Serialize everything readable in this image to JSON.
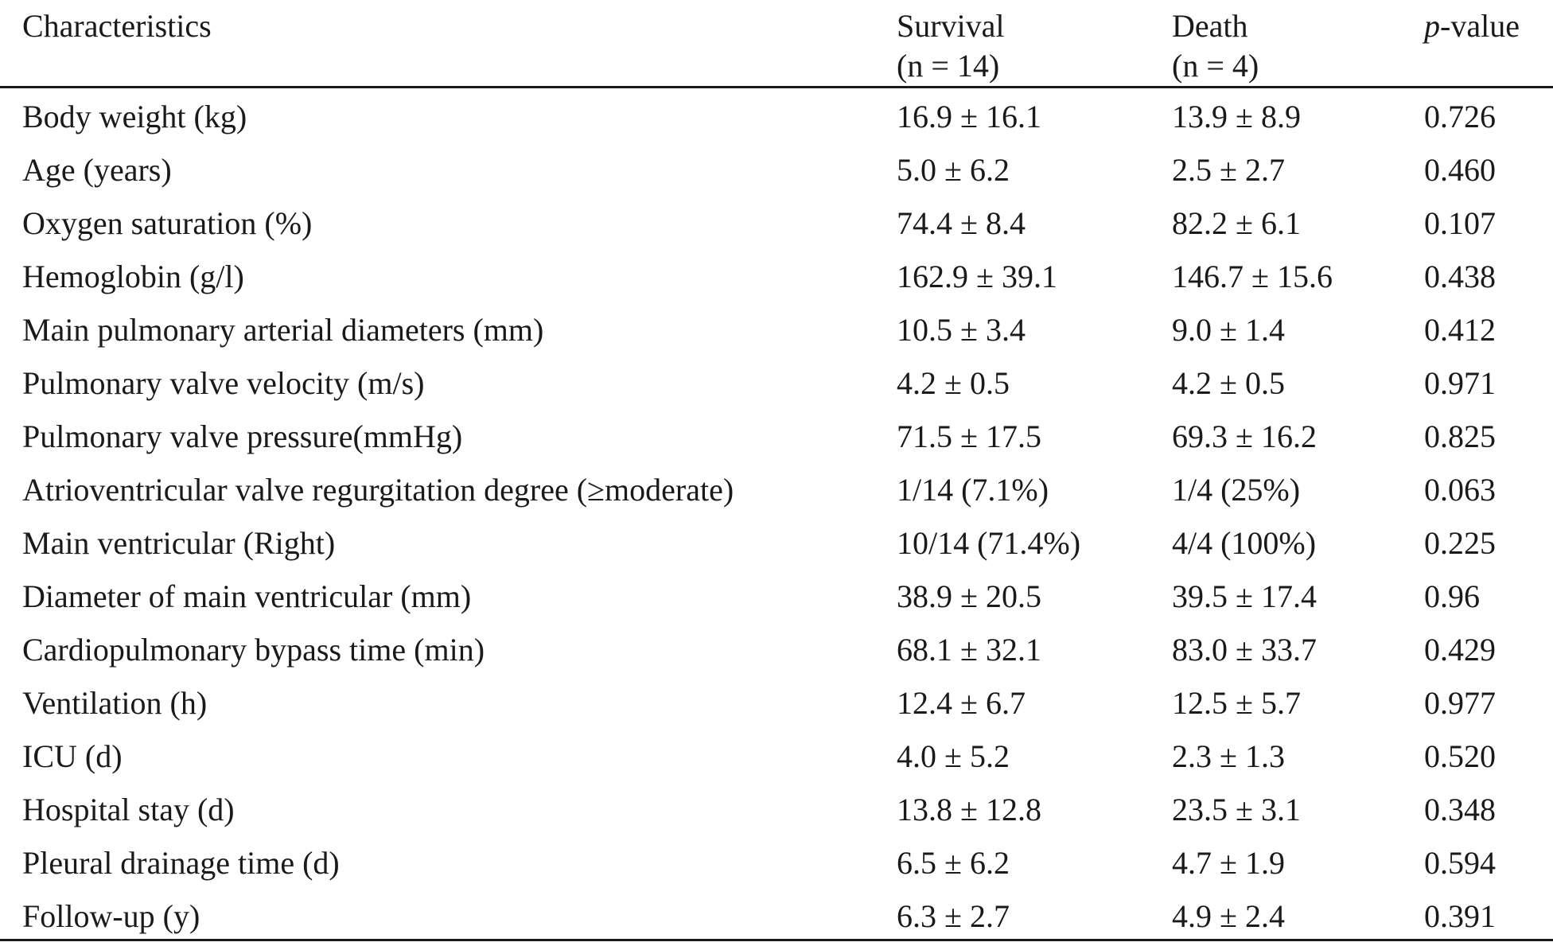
{
  "table": {
    "headers": {
      "characteristics": "Characteristics",
      "survival_line1": "Survival",
      "survival_line2": "(n = 14)",
      "death_line1": "Death",
      "death_line2": "(n = 4)",
      "pvalue_italic": "p",
      "pvalue_rest": "-value"
    },
    "rows": [
      {
        "label": "Body weight (kg)",
        "survival": "16.9 ± 16.1",
        "death": "13.9 ± 8.9",
        "p": "0.726"
      },
      {
        "label": "Age (years)",
        "survival": "5.0 ± 6.2",
        "death": "2.5 ± 2.7",
        "p": "0.460"
      },
      {
        "label": "Oxygen saturation (%)",
        "survival": "74.4 ± 8.4",
        "death": "82.2 ± 6.1",
        "p": "0.107"
      },
      {
        "label": "Hemoglobin (g/l)",
        "survival": "162.9 ± 39.1",
        "death": "146.7 ± 15.6",
        "p": "0.438"
      },
      {
        "label": "Main pulmonary arterial diameters (mm)",
        "survival": "10.5 ± 3.4",
        "death": "9.0 ± 1.4",
        "p": "0.412"
      },
      {
        "label": "Pulmonary valve velocity (m/s)",
        "survival": "4.2 ± 0.5",
        "death": "4.2 ± 0.5",
        "p": "0.971"
      },
      {
        "label": "Pulmonary valve pressure(mmHg)",
        "survival": "71.5 ± 17.5",
        "death": "69.3 ± 16.2",
        "p": "0.825"
      },
      {
        "label": "Atrioventricular valve regurgitation degree (≥moderate)",
        "survival": "1/14 (7.1%)",
        "death": "1/4 (25%)",
        "p": "0.063"
      },
      {
        "label": "Main ventricular (Right)",
        "survival": "10/14 (71.4%)",
        "death": "4/4 (100%)",
        "p": "0.225"
      },
      {
        "label": "Diameter of main ventricular (mm)",
        "survival": "38.9 ± 20.5",
        "death": "39.5 ± 17.4",
        "p": "0.96"
      },
      {
        "label": "Cardiopulmonary bypass time (min)",
        "survival": "68.1 ± 32.1",
        "death": "83.0 ± 33.7",
        "p": "0.429"
      },
      {
        "label": "Ventilation (h)",
        "survival": "12.4 ± 6.7",
        "death": "12.5 ± 5.7",
        "p": "0.977"
      },
      {
        "label": "ICU (d)",
        "survival": "4.0 ± 5.2",
        "death": "2.3 ± 1.3",
        "p": "0.520"
      },
      {
        "label": "Hospital stay (d)",
        "survival": "13.8 ± 12.8",
        "death": "23.5 ± 3.1",
        "p": "0.348"
      },
      {
        "label": "Pleural drainage time (d)",
        "survival": "6.5 ± 6.2",
        "death": "4.7 ± 1.9",
        "p": "0.594"
      },
      {
        "label": "Follow-up (y)",
        "survival": "6.3 ± 2.7",
        "death": "4.9 ± 2.4",
        "p": "0.391"
      }
    ]
  }
}
